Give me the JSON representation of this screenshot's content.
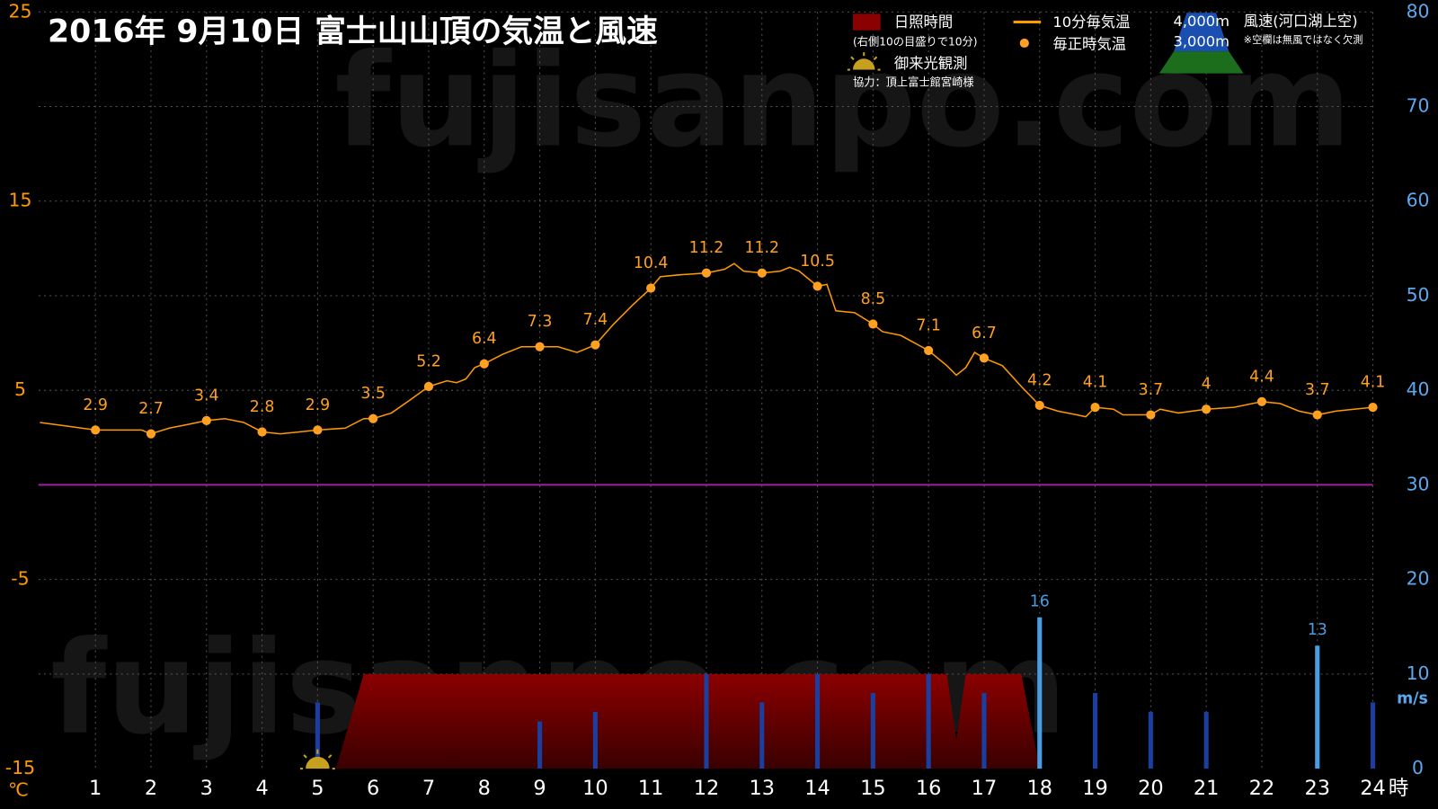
{
  "chart_data": {
    "type": "combo",
    "title": "2016年 9月10日 富士山山頂の気温と風速",
    "watermark": "fujisanpo.com",
    "x_unit": "時",
    "y_unit": "℃",
    "y2_unit": "m/s",
    "xlim": [
      0,
      24
    ],
    "xticks": [
      1,
      2,
      3,
      4,
      5,
      6,
      7,
      8,
      9,
      10,
      11,
      12,
      13,
      14,
      15,
      16,
      17,
      18,
      19,
      20,
      21,
      22,
      23,
      24
    ],
    "ylim": [
      -15,
      25
    ],
    "yticks": [
      -15,
      -5,
      5,
      15,
      25
    ],
    "y2lim": [
      0,
      80
    ],
    "y2ticks": [
      0,
      10,
      20,
      30,
      40,
      50,
      60,
      70,
      80
    ],
    "grid": true,
    "zero_line_color": "#a020a0",
    "y_tick_color": "#ff9900",
    "y2_tick_color": "#5aa8f0",
    "sunrise": {
      "label": "御来光観測",
      "x": 5
    },
    "credit": "協力：頂上富士館宮崎様",
    "series": [
      {
        "name": "日照時間",
        "legend_note": "(右側10の目盛りで10分)",
        "type": "area",
        "axis": "y2",
        "color": "#8b0000",
        "x": [
          5.33,
          5.83,
          16.33,
          16.5,
          16.67,
          17.67,
          18.0
        ],
        "values": [
          0,
          10,
          10,
          3,
          10,
          10,
          0
        ]
      },
      {
        "name": "10分毎気温",
        "type": "line",
        "color": "#ff9900",
        "x": [
          0,
          0.5,
          1,
          1.5,
          1.83,
          2,
          2.33,
          2.67,
          3,
          3.33,
          3.67,
          4,
          4.33,
          4.67,
          5,
          5.5,
          5.83,
          6,
          6.33,
          6.67,
          7,
          7.33,
          7.5,
          7.67,
          7.83,
          8,
          8.33,
          8.67,
          9,
          9.33,
          9.67,
          10,
          10.33,
          10.67,
          11,
          11.17,
          11.5,
          12,
          12.33,
          12.5,
          12.67,
          13,
          13.33,
          13.5,
          13.67,
          14,
          14.17,
          14.33,
          14.67,
          15,
          15.17,
          15.5,
          16,
          16.33,
          16.5,
          16.67,
          16.83,
          17,
          17.33,
          17.67,
          18,
          18.33,
          18.67,
          18.83,
          19,
          19.33,
          19.5,
          20,
          20.17,
          20.5,
          21,
          21.5,
          22,
          22.33,
          22.67,
          23,
          23.33,
          24
        ],
        "values": [
          3.3,
          3.1,
          2.9,
          2.9,
          2.9,
          2.7,
          3.0,
          3.2,
          3.4,
          3.5,
          3.3,
          2.8,
          2.7,
          2.8,
          2.9,
          3.0,
          3.5,
          3.5,
          3.8,
          4.5,
          5.2,
          5.5,
          5.4,
          5.6,
          6.2,
          6.4,
          6.9,
          7.3,
          7.3,
          7.3,
          7.0,
          7.4,
          8.5,
          9.5,
          10.4,
          11.0,
          11.1,
          11.2,
          11.4,
          11.7,
          11.3,
          11.2,
          11.3,
          11.5,
          11.3,
          10.5,
          10.6,
          9.2,
          9.1,
          8.5,
          8.1,
          7.9,
          7.1,
          6.3,
          5.8,
          6.2,
          7.0,
          6.7,
          6.3,
          5.2,
          4.2,
          3.9,
          3.7,
          3.6,
          4.1,
          4.0,
          3.7,
          3.7,
          4.0,
          3.8,
          4.0,
          4.1,
          4.4,
          4.3,
          3.9,
          3.7,
          3.9,
          4.1
        ]
      },
      {
        "name": "毎正時気温",
        "type": "scatter",
        "color": "#ffa020",
        "x": [
          1,
          2,
          3,
          4,
          5,
          6,
          7,
          8,
          9,
          10,
          11,
          12,
          13,
          14,
          15,
          16,
          17,
          18,
          19,
          20,
          21,
          22,
          23,
          24
        ],
        "values": [
          2.9,
          2.7,
          3.4,
          2.8,
          2.9,
          3.5,
          5.2,
          6.4,
          7.3,
          7.4,
          10.4,
          11.2,
          11.2,
          10.5,
          8.5,
          7.1,
          6.7,
          4.2,
          4.1,
          3.7,
          4,
          4.4,
          3.7,
          4.1
        ]
      },
      {
        "name": "風速(河口湖上空)",
        "legend_note": "※空欄は無風ではなく欠測",
        "altitude_labels": [
          "4,000m",
          "3,000m"
        ],
        "type": "bar",
        "axis": "y2",
        "color": "#1a3fa0",
        "x": [
          1,
          2,
          3,
          4,
          5,
          6,
          7,
          8,
          9,
          10,
          11,
          12,
          13,
          14,
          15,
          16,
          17,
          18,
          19,
          20,
          21,
          22,
          23,
          24
        ],
        "values": [
          null,
          null,
          null,
          null,
          7,
          null,
          null,
          null,
          5,
          6,
          null,
          10,
          7,
          10,
          8,
          10,
          8,
          16,
          8,
          6,
          6,
          null,
          13,
          7
        ],
        "colors": [
          null,
          null,
          null,
          null,
          "#1a3fa0",
          null,
          null,
          null,
          "#1a3fa0",
          "#1a3fa0",
          null,
          "#1a3fa0",
          "#1a3fa0",
          "#1a3fa0",
          "#1a3fa0",
          "#1a3fa0",
          "#1a3fa0",
          "#4a9de0",
          "#1a3fa0",
          "#1a3fa0",
          "#1a3fa0",
          null,
          "#4a9de0",
          "#1a3fa0"
        ],
        "value_labels": [
          null,
          null,
          null,
          null,
          null,
          null,
          null,
          null,
          null,
          null,
          null,
          null,
          null,
          null,
          null,
          null,
          null,
          "16",
          null,
          null,
          null,
          null,
          "13",
          null
        ]
      }
    ]
  }
}
